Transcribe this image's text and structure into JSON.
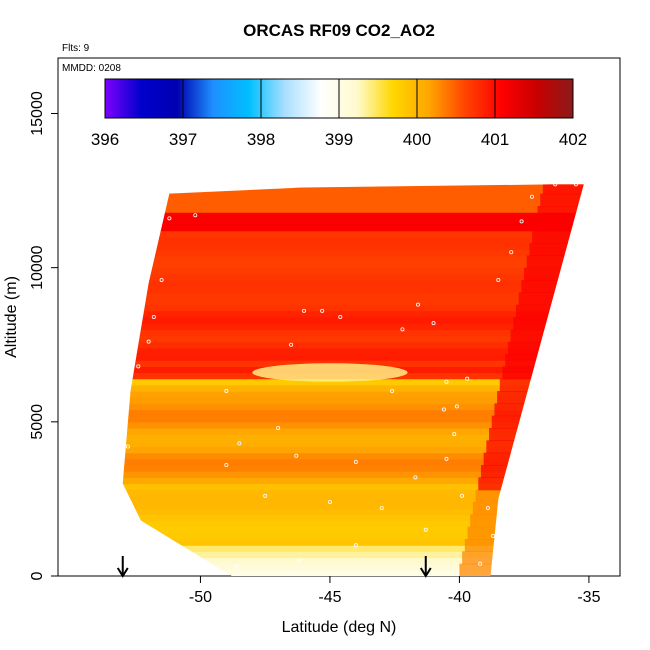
{
  "chart_data": {
    "type": "heatmap",
    "title": "ORCAS RF09 CO2_AO2",
    "flights_label": "Flts: 9",
    "date_label": "MMDD: 0208",
    "xlabel": "Latitude (deg N)",
    "ylabel": "Altitude (m)",
    "xlim": [
      -55.5,
      -33.8
    ],
    "ylim": [
      0,
      16800
    ],
    "x_ticks": [
      -50,
      -45,
      -40,
      -35
    ],
    "x_tick_labels": [
      "-50",
      "-45",
      "-40",
      "-35"
    ],
    "y_ticks": [
      0,
      5000,
      10000,
      15000
    ],
    "y_tick_labels": [
      "0",
      "5000",
      "10000",
      "15000"
    ],
    "colorbar": {
      "min": 396,
      "max": 402,
      "ticks": [
        396,
        397,
        398,
        399,
        400,
        401,
        402
      ],
      "tick_labels": [
        "396",
        "397",
        "398",
        "399",
        "400",
        "401",
        "402"
      ],
      "colors": [
        "#7f00ff",
        "#0000cc",
        "#0000b0",
        "#1e90ff",
        "#00bfff",
        "#aadfff",
        "#ffffff",
        "#fffacd",
        "#ffd700",
        "#ffa500",
        "#ff4500",
        "#ff0000",
        "#c80000",
        "#8b1a1a"
      ]
    },
    "field": {
      "x_range": [
        -53.5,
        -35
      ],
      "y_range": [
        0,
        12700
      ],
      "boundary": [
        {
          "lat": -48.8,
          "alt": 0
        },
        {
          "lat": -52.3,
          "alt": 1800
        },
        {
          "lat": -53.0,
          "alt": 3000
        },
        {
          "lat": -52.7,
          "alt": 6000
        },
        {
          "lat": -52.0,
          "alt": 9500
        },
        {
          "lat": -51.2,
          "alt": 12400
        },
        {
          "lat": -46.0,
          "alt": 12600
        },
        {
          "lat": -36.5,
          "alt": 12700
        },
        {
          "lat": -35.2,
          "alt": 12700
        },
        {
          "lat": -38.5,
          "alt": 2500
        },
        {
          "lat": -38.8,
          "alt": 0
        }
      ],
      "description_values": {
        "surface_layer": 399.0,
        "low_layer": 399.9,
        "mid_layer": 400.2,
        "upper_band_6000": 399.7,
        "band_7500": 400.9,
        "band_8500": 400.8,
        "top_layer": 400.7,
        "east_edge": 401.1
      }
    },
    "flight_markers": [
      {
        "lat": -53.0,
        "alt": 0
      },
      {
        "lat": -41.3,
        "alt": 0
      }
    ],
    "sample_points": [
      {
        "lat": -51.2,
        "alt": 11600
      },
      {
        "lat": -50.2,
        "alt": 11700
      },
      {
        "lat": -51.5,
        "alt": 9600
      },
      {
        "lat": -51.8,
        "alt": 8400
      },
      {
        "lat": -52.0,
        "alt": 7600
      },
      {
        "lat": -52.4,
        "alt": 6800
      },
      {
        "lat": -52.8,
        "alt": 4200
      },
      {
        "lat": -49.0,
        "alt": 6000
      },
      {
        "lat": -46.0,
        "alt": 8600
      },
      {
        "lat": -45.3,
        "alt": 8600
      },
      {
        "lat": -44.6,
        "alt": 8400
      },
      {
        "lat": -42.2,
        "alt": 8000
      },
      {
        "lat": -41.6,
        "alt": 8800
      },
      {
        "lat": -41.0,
        "alt": 8200
      },
      {
        "lat": -46.5,
        "alt": 7500
      },
      {
        "lat": -42.6,
        "alt": 6000
      },
      {
        "lat": -40.5,
        "alt": 6300
      },
      {
        "lat": -39.7,
        "alt": 6400
      },
      {
        "lat": -40.1,
        "alt": 5500
      },
      {
        "lat": -47.0,
        "alt": 4800
      },
      {
        "lat": -48.5,
        "alt": 4300
      },
      {
        "lat": -46.3,
        "alt": 3900
      },
      {
        "lat": -49.0,
        "alt": 3600
      },
      {
        "lat": -44.0,
        "alt": 3700
      },
      {
        "lat": -41.7,
        "alt": 3200
      },
      {
        "lat": -40.5,
        "alt": 3800
      },
      {
        "lat": -47.5,
        "alt": 2600
      },
      {
        "lat": -45.0,
        "alt": 2400
      },
      {
        "lat": -43.0,
        "alt": 2200
      },
      {
        "lat": -41.3,
        "alt": 1500
      },
      {
        "lat": -39.9,
        "alt": 2600
      },
      {
        "lat": -38.9,
        "alt": 2200
      },
      {
        "lat": -38.7,
        "alt": 1300
      },
      {
        "lat": -38.6,
        "alt": 700
      },
      {
        "lat": -39.2,
        "alt": 400
      },
      {
        "lat": -44.0,
        "alt": 1000
      },
      {
        "lat": -46.2,
        "alt": 500
      },
      {
        "lat": -48.6,
        "alt": 300
      },
      {
        "lat": -37.2,
        "alt": 12300
      },
      {
        "lat": -36.3,
        "alt": 12700
      },
      {
        "lat": -35.5,
        "alt": 12700
      },
      {
        "lat": -37.6,
        "alt": 11500
      },
      {
        "lat": -38.0,
        "alt": 10500
      },
      {
        "lat": -38.5,
        "alt": 9600
      },
      {
        "lat": -40.6,
        "alt": 5400
      },
      {
        "lat": -40.2,
        "alt": 4600
      }
    ]
  }
}
